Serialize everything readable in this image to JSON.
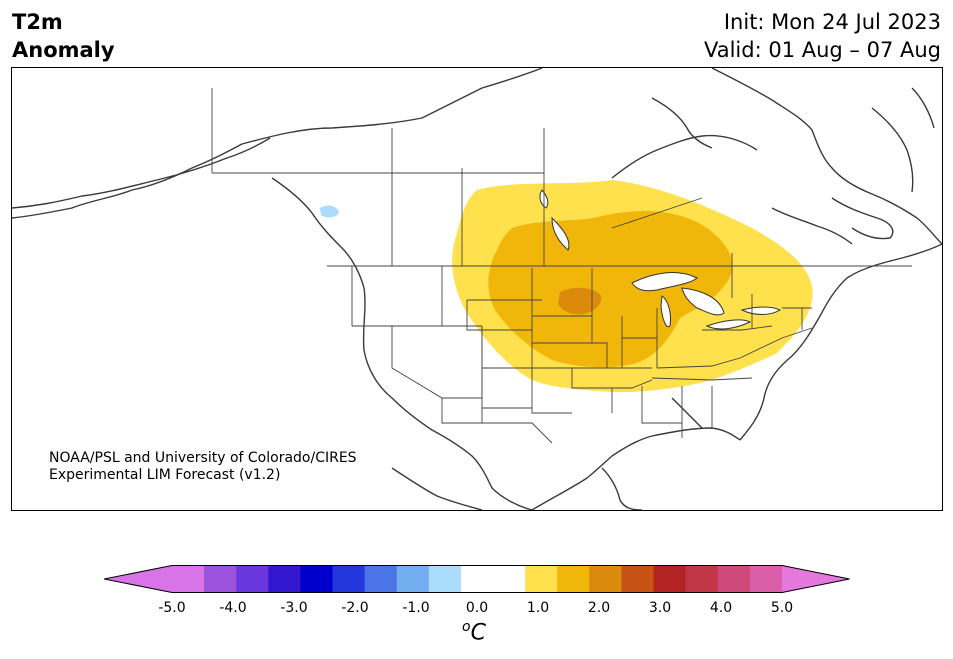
{
  "header": {
    "title_line1": "T2m",
    "title_line2": "Anomaly",
    "init": "Init: Mon 24 Jul 2023",
    "valid": "Valid: 01 Aug – 07 Aug"
  },
  "credit": {
    "line1": "NOAA/PSL and University of Colorado/CIRES",
    "line2": "Experimental LIM Forecast (v1.2)"
  },
  "colorbar": {
    "unit": "C",
    "unit_sup": "o",
    "tick_labels": [
      "-5.0",
      "-4.0",
      "-3.0",
      "-2.0",
      "-1.0",
      "0.0",
      "1.0",
      "2.0",
      "3.0",
      "4.0",
      "5.0"
    ],
    "colors": [
      "#d974e8",
      "#9b52dc",
      "#6a37df",
      "#3318d0",
      "#0000cc",
      "#2437dd",
      "#4b74e6",
      "#73aff0",
      "#abdcfc",
      "#ffffff",
      "#ffffff",
      "#ffe04d",
      "#f0b70a",
      "#dc8a0c",
      "#c65214",
      "#b32323",
      "#c23648",
      "#cf4a7a",
      "#db5ea8"
    ],
    "under_color": "#d974e8",
    "over_color": "#e578dc"
  },
  "anomaly_levels": [
    {
      "label": "0.5 to 1.0",
      "color": "#ffe04d"
    },
    {
      "label": "1.0 to 1.5",
      "color": "#f0b70a"
    },
    {
      "label": "1.5 to 2.0",
      "color": "#dc8a0c"
    },
    {
      "label": "-1.0 to -0.5",
      "color": "#abdcfc"
    }
  ]
}
